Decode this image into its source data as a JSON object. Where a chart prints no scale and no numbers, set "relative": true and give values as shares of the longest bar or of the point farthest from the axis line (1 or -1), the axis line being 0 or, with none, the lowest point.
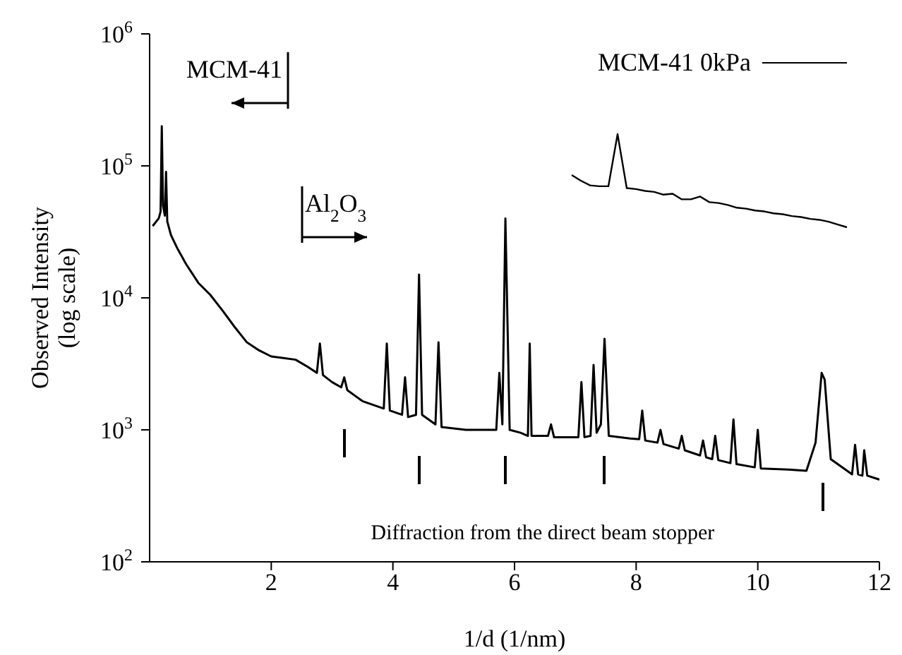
{
  "chart_data": [
    {
      "type": "line",
      "xlabel": "1/d (1/nm)",
      "ylabel": "Observed Intensity\n(log scale)",
      "log": true,
      "xlim": [
        0,
        12
      ],
      "xticks": [
        2,
        4,
        6,
        8,
        10,
        12
      ],
      "ylim": [
        100,
        1000000
      ],
      "yticks": [
        {
          "value": 100,
          "label": "10$^{2}$"
        },
        {
          "value": 1000,
          "label": "10$^{3}$"
        },
        {
          "value": 10000,
          "label": "10$^{4}$"
        },
        {
          "value": 100000,
          "label": "10$^{5}$"
        },
        {
          "value": 1000000,
          "label": "10$^{6}$"
        }
      ],
      "annotations": [
        "MCM-41",
        "Al$_{2}$O$_{3}$",
        "Diffraction from the direct beam stopper"
      ],
      "series": [
        {
          "color": "#000000",
          "x": [
            0.05,
            0.15,
            0.18,
            0.2,
            0.22,
            0.25,
            0.27,
            0.29,
            0.35,
            0.45,
            0.6,
            0.8,
            1.0,
            1.2,
            1.4,
            1.6,
            1.8,
            2.0,
            2.2,
            2.4,
            2.6,
            2.75,
            2.8,
            2.85,
            3.0,
            3.15,
            3.2,
            3.25,
            3.5,
            3.85,
            3.9,
            3.95,
            4.15,
            4.2,
            4.25,
            4.38,
            4.43,
            4.48,
            4.7,
            4.75,
            4.8,
            5.2,
            5.7,
            5.75,
            5.8,
            5.85,
            5.92,
            6.1,
            6.22,
            6.25,
            6.28,
            6.55,
            6.6,
            6.65,
            7.05,
            7.1,
            7.15,
            7.25,
            7.3,
            7.35,
            7.42,
            7.48,
            7.55,
            7.9,
            8.05,
            8.1,
            8.15,
            8.35,
            8.4,
            8.45,
            8.7,
            8.75,
            8.8,
            9.05,
            9.1,
            9.15,
            9.25,
            9.3,
            9.35,
            9.55,
            9.6,
            9.65,
            9.95,
            10.0,
            10.05,
            10.5,
            10.8,
            10.95,
            11.05,
            11.1,
            11.2,
            11.55,
            11.6,
            11.65,
            11.72,
            11.75,
            11.8,
            12
          ],
          "values": [
            35000,
            40000,
            45000,
            200000,
            50000,
            42000,
            90000,
            38000,
            30000,
            24000,
            18000,
            13000,
            10500,
            8000,
            6000,
            4600,
            4000,
            3600,
            3500,
            3400,
            3000,
            2700,
            4500,
            2600,
            2300,
            2100,
            2500,
            2000,
            1650,
            1450,
            4500,
            1400,
            1300,
            2500,
            1250,
            1300,
            15000,
            1300,
            1100,
            4600,
            1050,
            1000,
            1000,
            2700,
            1100,
            40000,
            1000,
            950,
            900,
            4500,
            900,
            900,
            1100,
            880,
            880,
            2300,
            880,
            900,
            3100,
            950,
            1100,
            4900,
            900,
            860,
            850,
            1400,
            830,
            800,
            1000,
            780,
            720,
            900,
            700,
            640,
            830,
            620,
            600,
            900,
            590,
            560,
            1200,
            550,
            520,
            1000,
            510,
            500,
            490,
            800,
            2700,
            2400,
            600,
            460,
            770,
            460,
            450,
            700,
            450,
            420
          ]
        }
      ]
    },
    {
      "type": "line",
      "relative": true,
      "legend": "top right",
      "categories": [
        null,
        null,
        null,
        null,
        null,
        null,
        null,
        null,
        null,
        null,
        null,
        null,
        null,
        null,
        null,
        null,
        null,
        null,
        null,
        null,
        null,
        null,
        null,
        null,
        null,
        null,
        null,
        null,
        null,
        null,
        null
      ],
      "series": [
        {
          "name": "MCM-41 0kPa",
          "color": "#000000",
          "values": [
            0.56,
            0.5,
            0.45,
            0.44,
            0.44,
            1.0,
            0.42,
            0.41,
            0.39,
            0.38,
            0.35,
            0.36,
            0.3,
            0.3,
            0.33,
            0.27,
            0.26,
            0.24,
            0.21,
            0.2,
            0.18,
            0.17,
            0.15,
            0.14,
            0.12,
            0.11,
            0.09,
            0.08,
            0.06,
            0.03,
            0
          ]
        }
      ]
    }
  ]
}
